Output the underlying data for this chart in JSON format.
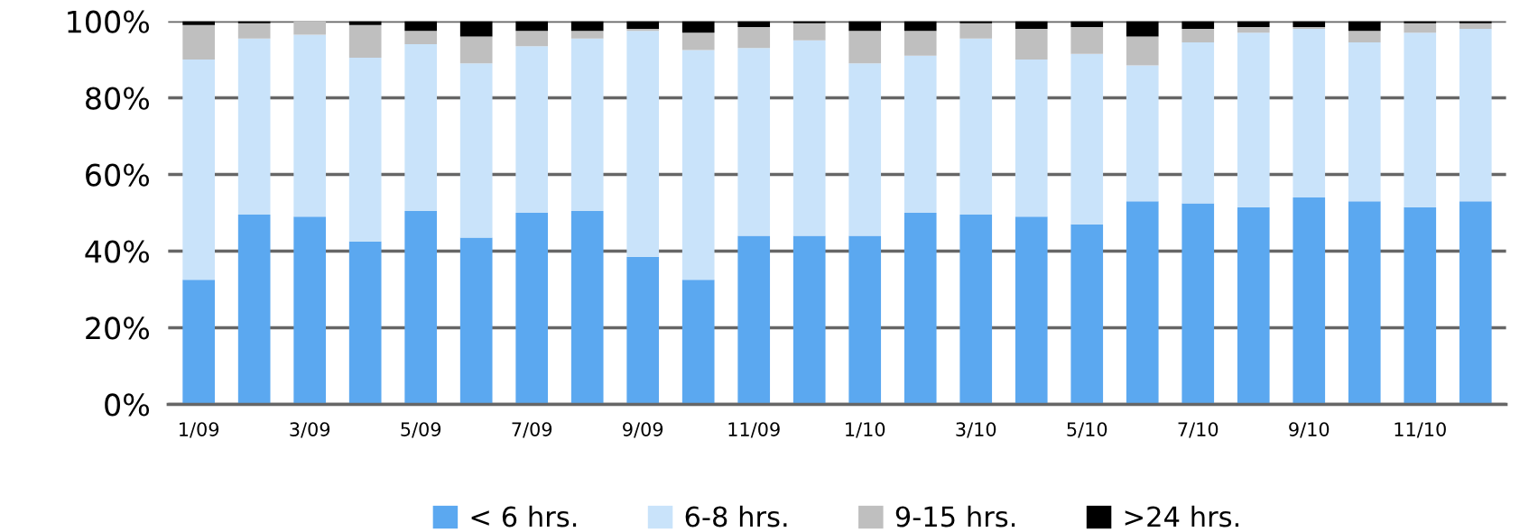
{
  "chart_data": {
    "type": "bar",
    "stacked": true,
    "categories": [
      "1/09",
      null,
      "3/09",
      null,
      "5/09",
      null,
      "7/09",
      null,
      "9/09",
      null,
      "11/09",
      null,
      "1/10",
      null,
      "3/10",
      null,
      "5/10",
      null,
      "7/10",
      null,
      "9/10",
      null,
      "11/10",
      null
    ],
    "series": [
      {
        "name": "< 6 hrs.",
        "color": "#5ba8f0",
        "values": [
          32.5,
          49.5,
          49,
          42.5,
          50.5,
          43.5,
          50,
          50.5,
          38.5,
          32.5,
          44,
          44,
          44,
          50,
          49.5,
          49,
          47,
          53,
          52.5,
          51.5,
          54,
          53,
          51.5,
          53
        ]
      },
      {
        "name": "6-8 hrs.",
        "color": "#c9e3fa",
        "values": [
          57.5,
          46,
          47.5,
          48,
          43.5,
          45.5,
          43.5,
          45,
          59,
          60,
          49,
          51,
          45,
          41,
          46,
          41,
          44.5,
          35.5,
          42,
          45.5,
          44,
          41.5,
          45.5,
          45
        ]
      },
      {
        "name": "9-15 hrs.",
        "color": "#bfbfbf",
        "values": [
          9,
          4,
          3.5,
          8.5,
          3.5,
          7,
          4,
          2,
          0.5,
          4.5,
          5.5,
          4.5,
          8.5,
          6.5,
          4,
          8,
          7,
          7.5,
          3.5,
          1.5,
          0.5,
          3,
          2.5,
          1.5
        ]
      },
      {
        "name": ">24 hrs.",
        "color": "#000000",
        "values": [
          1,
          0.5,
          0,
          1,
          2.5,
          4,
          2.5,
          2.5,
          2,
          3,
          1.5,
          0.5,
          2.5,
          2.5,
          0.5,
          2,
          1.5,
          4,
          2,
          1.5,
          1.5,
          2.5,
          0.5,
          0.5
        ]
      }
    ],
    "ylim": [
      0,
      100
    ],
    "yticks": [
      {
        "value": 0,
        "label": "0%"
      },
      {
        "value": 20,
        "label": "20%"
      },
      {
        "value": 40,
        "label": "40%"
      },
      {
        "value": 60,
        "label": "60%"
      },
      {
        "value": 80,
        "label": "80%"
      },
      {
        "value": 100,
        "label": "100%"
      }
    ],
    "grid": "y",
    "legend": "bottom"
  }
}
